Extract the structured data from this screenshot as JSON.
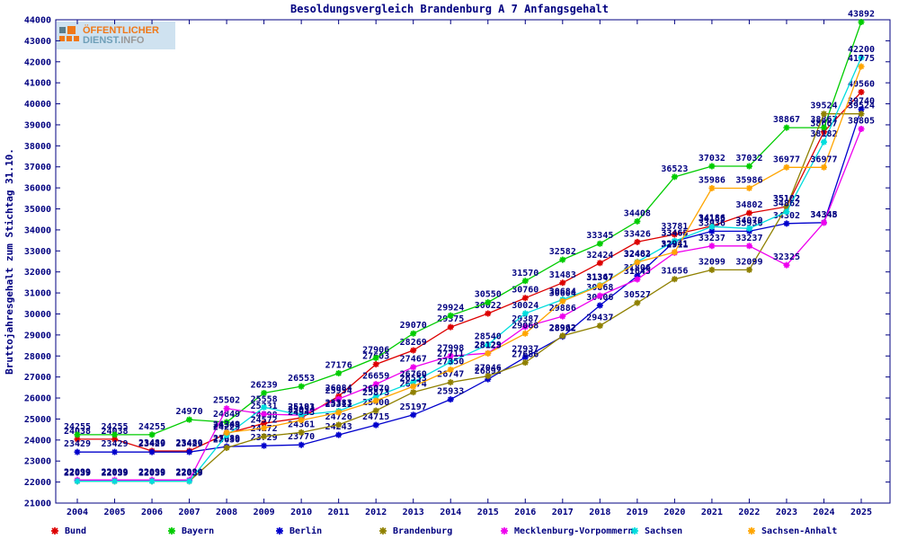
{
  "title": "Besoldungsvergleich Brandenburg A 7 Anfangsgehalt",
  "logo": {
    "line1": "ÖFFENTLICHER",
    "line2a": "DIENST.",
    "line2b": "INFO"
  },
  "y_axis": {
    "label": "Bruttojahresgehalt zum Stichtag 31.10.",
    "min": 21000,
    "max": 44000,
    "step": 1000
  },
  "x_axis": {
    "years": [
      2004,
      2005,
      2006,
      2007,
      2008,
      2009,
      2010,
      2011,
      2012,
      2013,
      2014,
      2015,
      2016,
      2017,
      2018,
      2019,
      2020,
      2021,
      2022,
      2023,
      2024,
      2025
    ]
  },
  "colors": {
    "text": "#000080",
    "axis": "#000080",
    "background": "#ffffff"
  },
  "chart_data": {
    "type": "line",
    "title": "Besoldungsvergleich Brandenburg A 7 Anfangsgehalt",
    "xlabel": "",
    "ylabel": "Bruttojahresgehalt zum Stichtag 31.10.",
    "ylim": [
      21000,
      44000
    ],
    "grid": false,
    "legend_position": "bottom",
    "x": [
      2004,
      2005,
      2006,
      2007,
      2008,
      2009,
      2010,
      2011,
      2012,
      2013,
      2014,
      2015,
      2016,
      2017,
      2018,
      2019,
      2020,
      2021,
      2022,
      2023,
      2024,
      2025
    ],
    "series": [
      {
        "name": "Bund",
        "color": "#dd0000",
        "values": [
          24038,
          24038,
          23480,
          23480,
          24307,
          24798,
          25054,
          26084,
          27603,
          28269,
          29375,
          30022,
          30760,
          31483,
          32424,
          33426,
          33781,
          34186,
          34802,
          35102,
          38667,
          40560
        ]
      },
      {
        "name": "Bayern",
        "color": "#00cc00",
        "values": [
          24255,
          24255,
          24255,
          24970,
          24849,
          26239,
          26553,
          27176,
          27906,
          29070,
          29924,
          30550,
          31570,
          32582,
          33345,
          34408,
          36523,
          37032,
          37032,
          38867,
          38867,
          43892
        ]
      },
      {
        "name": "Berlin",
        "color": "#0000cc",
        "values": [
          23429,
          23429,
          23429,
          23429,
          23689,
          23729,
          23770,
          24243,
          24715,
          25197,
          25933,
          26892,
          27937,
          28922,
          30406,
          31806,
          33463,
          33936,
          33936,
          34302,
          34348,
          39740
        ]
      },
      {
        "name": "Brandenburg",
        "color": "#8f8000",
        "values": [
          22039,
          22039,
          22039,
          22039,
          23630,
          24172,
          24361,
          24726,
          25400,
          26274,
          26747,
          27046,
          27686,
          28962,
          29437,
          30527,
          31656,
          32099,
          32099,
          35102,
          39524,
          39524
        ]
      },
      {
        "name": "Mecklenburg-Vorpommern",
        "color": "#ee00ee",
        "values": [
          22099,
          22099,
          22099,
          22099,
          25502,
          25231,
          25183,
          25954,
          26659,
          27467,
          27998,
          28129,
          29387,
          29886,
          30868,
          31645,
          32911,
          33237,
          33237,
          32325,
          34345,
          38805
        ]
      },
      {
        "name": "Sachsen",
        "color": "#00dddd",
        "values": [
          22039,
          22039,
          22039,
          22039,
          24229,
          25558,
          25191,
          25383,
          26070,
          26760,
          27711,
          28540,
          30024,
          30684,
          31367,
          32482,
          33468,
          34155,
          34070,
          34862,
          38182,
          42200
        ]
      },
      {
        "name": "Sachsen-Anhalt",
        "color": "#ffa500",
        "values": [
          null,
          null,
          null,
          null,
          24349,
          24572,
          24943,
          25311,
          25873,
          26553,
          27350,
          28125,
          29068,
          30604,
          31347,
          32463,
          32941,
          35986,
          35986,
          36977,
          36977,
          41775
        ]
      }
    ]
  }
}
